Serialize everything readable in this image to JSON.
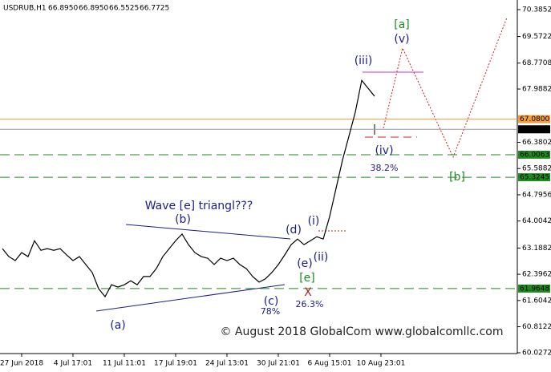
{
  "chart_data": {
    "type": "line",
    "title": "USDRUB,H1",
    "ohlc": [
      "66.8950",
      "66.8950",
      "66.5525",
      "66.7725"
    ],
    "categories": [
      null,
      null,
      null,
      "27 Jun 2018",
      null,
      null,
      null,
      null,
      null,
      null,
      null,
      "4 Jul 17:01",
      null,
      null,
      null,
      null,
      null,
      null,
      null,
      "11 Jul 11:01",
      null,
      null,
      null,
      null,
      null,
      null,
      null,
      "17 Jul 19:01",
      null,
      null,
      null,
      null,
      null,
      null,
      null,
      "24 Jul 13:01",
      null,
      null,
      null,
      null,
      null,
      null,
      null,
      "30 Jul 21:01",
      null,
      null,
      null,
      null,
      null,
      null,
      null,
      "6 Aug 15:01",
      null,
      null,
      null,
      null,
      null,
      null,
      null,
      "10 Aug 23:01"
    ],
    "series": [
      {
        "name": "USDRUB",
        "color": "#000000",
        "values": [
          63.17,
          62.93,
          62.81,
          63.05,
          62.93,
          63.41,
          63.12,
          63.17,
          63.12,
          63.17,
          62.98,
          62.81,
          62.93,
          62.69,
          62.45,
          61.96,
          61.72,
          62.08,
          62.01,
          62.08,
          62.2,
          62.08,
          62.33,
          62.33,
          62.57,
          62.93,
          63.17,
          63.41,
          63.61,
          63.29,
          63.05,
          62.93,
          62.88,
          62.69,
          62.88,
          62.81,
          62.88,
          62.69,
          62.57,
          62.33,
          62.16,
          62.26,
          62.45,
          62.69,
          62.98,
          63.29,
          63.46,
          63.29,
          63.41,
          63.53,
          63.46,
          64.14,
          64.99,
          65.84,
          66.56,
          67.29,
          68.25,
          68.01,
          67.77,
          null
        ]
      }
    ],
    "ylim": [
      60.0272,
      70.3852
    ],
    "yticks": [
      70.3852,
      69.5722,
      68.7708,
      67.9882,
      66.3802,
      65.5882,
      64.7956,
      64.0042,
      63.1882,
      62.3962,
      61.6042,
      60.8122,
      60.0272
    ],
    "levels": [
      {
        "value": 67.08,
        "label": "67.0800",
        "color": "#f39c3c"
      },
      {
        "value": 66.7725,
        "color": "#000000"
      },
      {
        "value": 66.0063,
        "color": "#1f8a1f"
      },
      {
        "value": 65.3245,
        "color": "#1f8a1f"
      },
      {
        "value": 61.9648,
        "color": "#1f8a1f"
      }
    ],
    "annotations": [
      {
        "text": "Wave [e] triangl???",
        "color": "#1c1c8c"
      },
      {
        "text": "(b)",
        "color": "#1c1c8c"
      },
      {
        "text": "(a)",
        "color": "#1c1c8c"
      },
      {
        "text": "(c)",
        "color": "#1c1c8c"
      },
      {
        "text": "78%",
        "color": "#1c1c8c"
      },
      {
        "text": "(d)",
        "color": "#1c1c8c"
      },
      {
        "text": "(e)",
        "color": "#1c1c8c"
      },
      {
        "text": "[e]",
        "color": "#1f8a1f"
      },
      {
        "text": "X",
        "color": "#b22222"
      },
      {
        "text": "26.3%",
        "color": "#1c1c8c"
      },
      {
        "text": "(i)",
        "color": "#1c1c8c"
      },
      {
        "text": "(ii)",
        "color": "#1c1c8c"
      },
      {
        "text": "(iii)",
        "color": "#1c1c8c"
      },
      {
        "text": "(iv)",
        "color": "#1c1c8c"
      },
      {
        "text": "38.2%",
        "color": "#1c1c8c"
      },
      {
        "text": "[a]",
        "color": "#1f8a1f"
      },
      {
        "text": "(v)",
        "color": "#1c1c8c"
      },
      {
        "text": "[b]",
        "color": "#1f8a1f"
      },
      {
        "text": "© August 2018 GlobalCom www.globalcomllc.com",
        "color": "#222222"
      }
    ]
  }
}
